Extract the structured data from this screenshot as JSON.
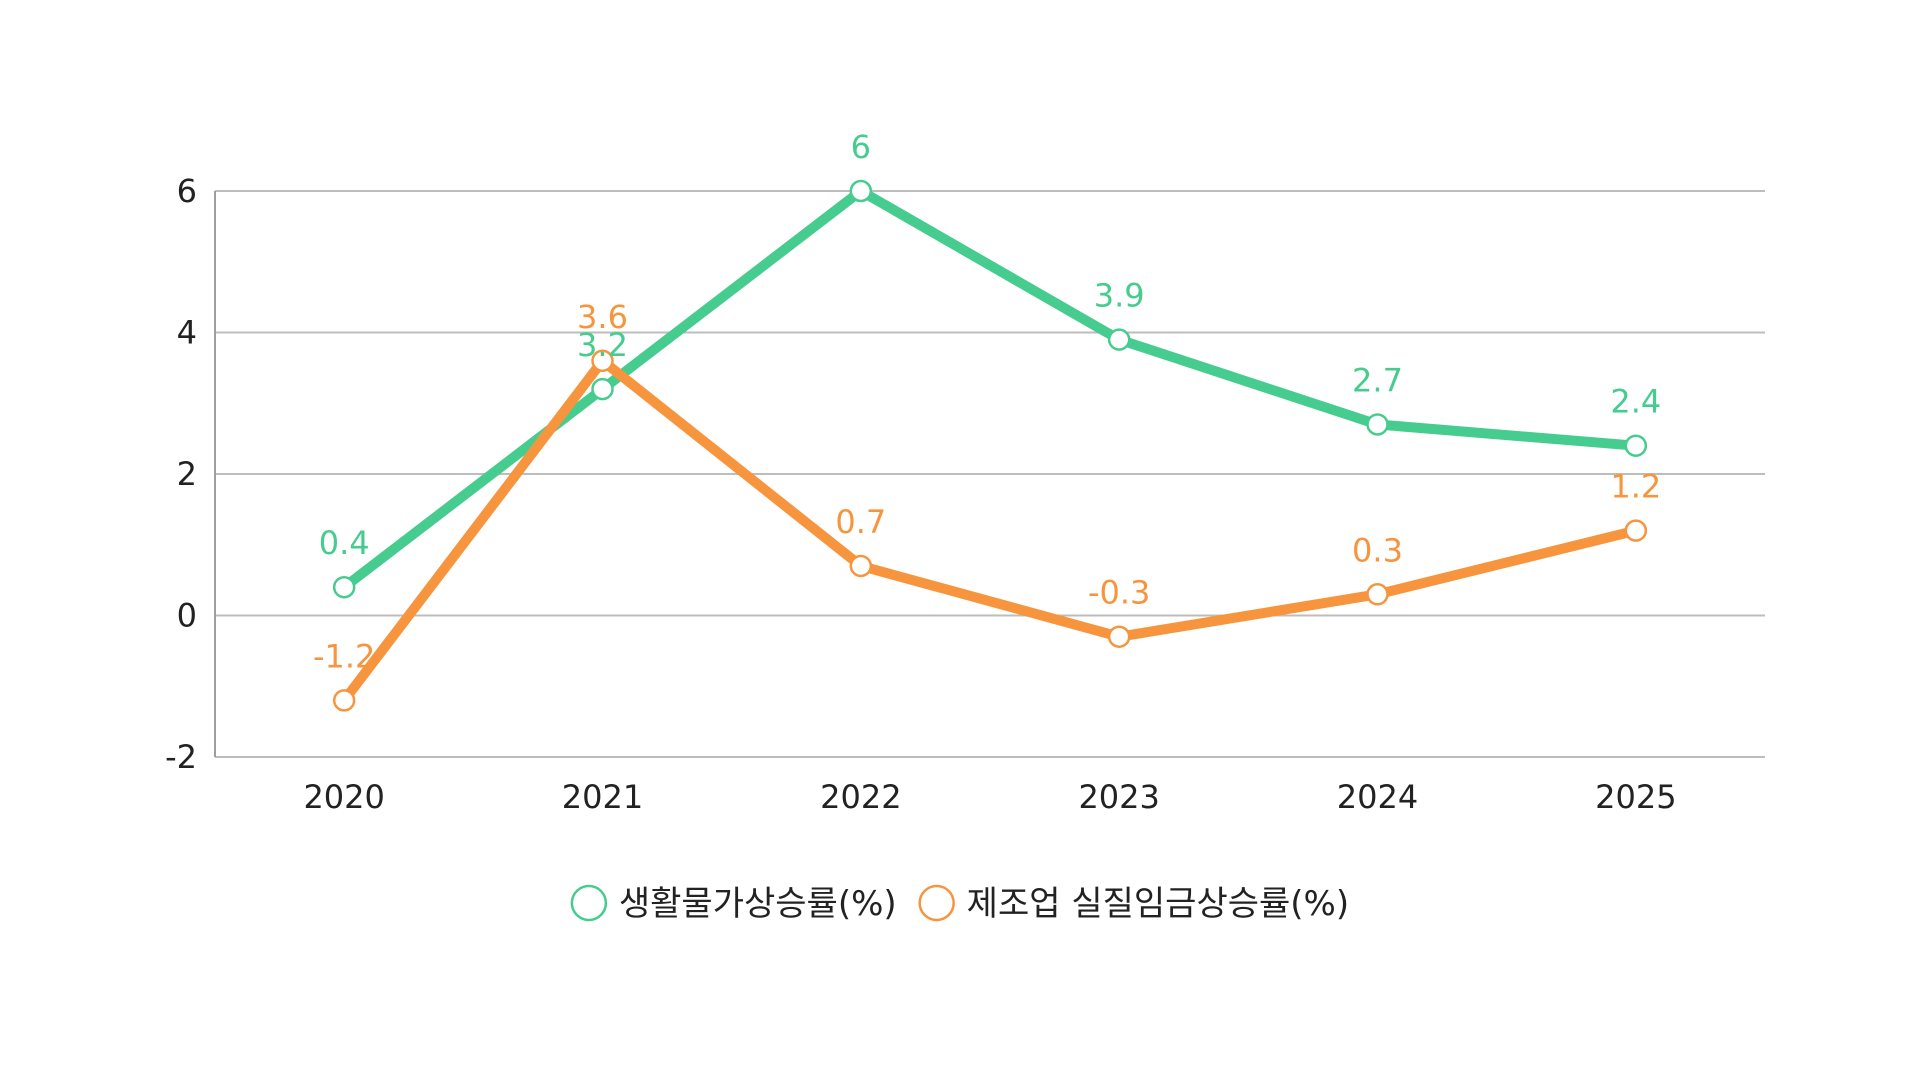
{
  "chart_data": {
    "type": "line",
    "title": "",
    "xlabel": "",
    "ylabel": "",
    "categories": [
      "2020",
      "2021",
      "2022",
      "2023",
      "2024",
      "2025"
    ],
    "ylim": [
      -2,
      6
    ],
    "yticks": [
      "-2",
      "0",
      "2",
      "4",
      "6"
    ],
    "grid": true,
    "legend_position": "bottom",
    "series": [
      {
        "name": "생활물가상승률(%)",
        "values": [
          0.4,
          3.2,
          6,
          3.9,
          2.7,
          2.4
        ],
        "labels": [
          "0.4",
          "3.2",
          "6",
          "3.9",
          "2.7",
          "2.4"
        ],
        "color": "#47cc8f"
      },
      {
        "name": "제조업 실질임금상승률(%)",
        "values": [
          -1.2,
          3.6,
          0.7,
          -0.3,
          0.3,
          1.2
        ],
        "labels": [
          "-1.2",
          "3.6",
          "0.7",
          "-0.3",
          "0.3",
          "1.2"
        ],
        "color": "#f7953f"
      }
    ]
  }
}
